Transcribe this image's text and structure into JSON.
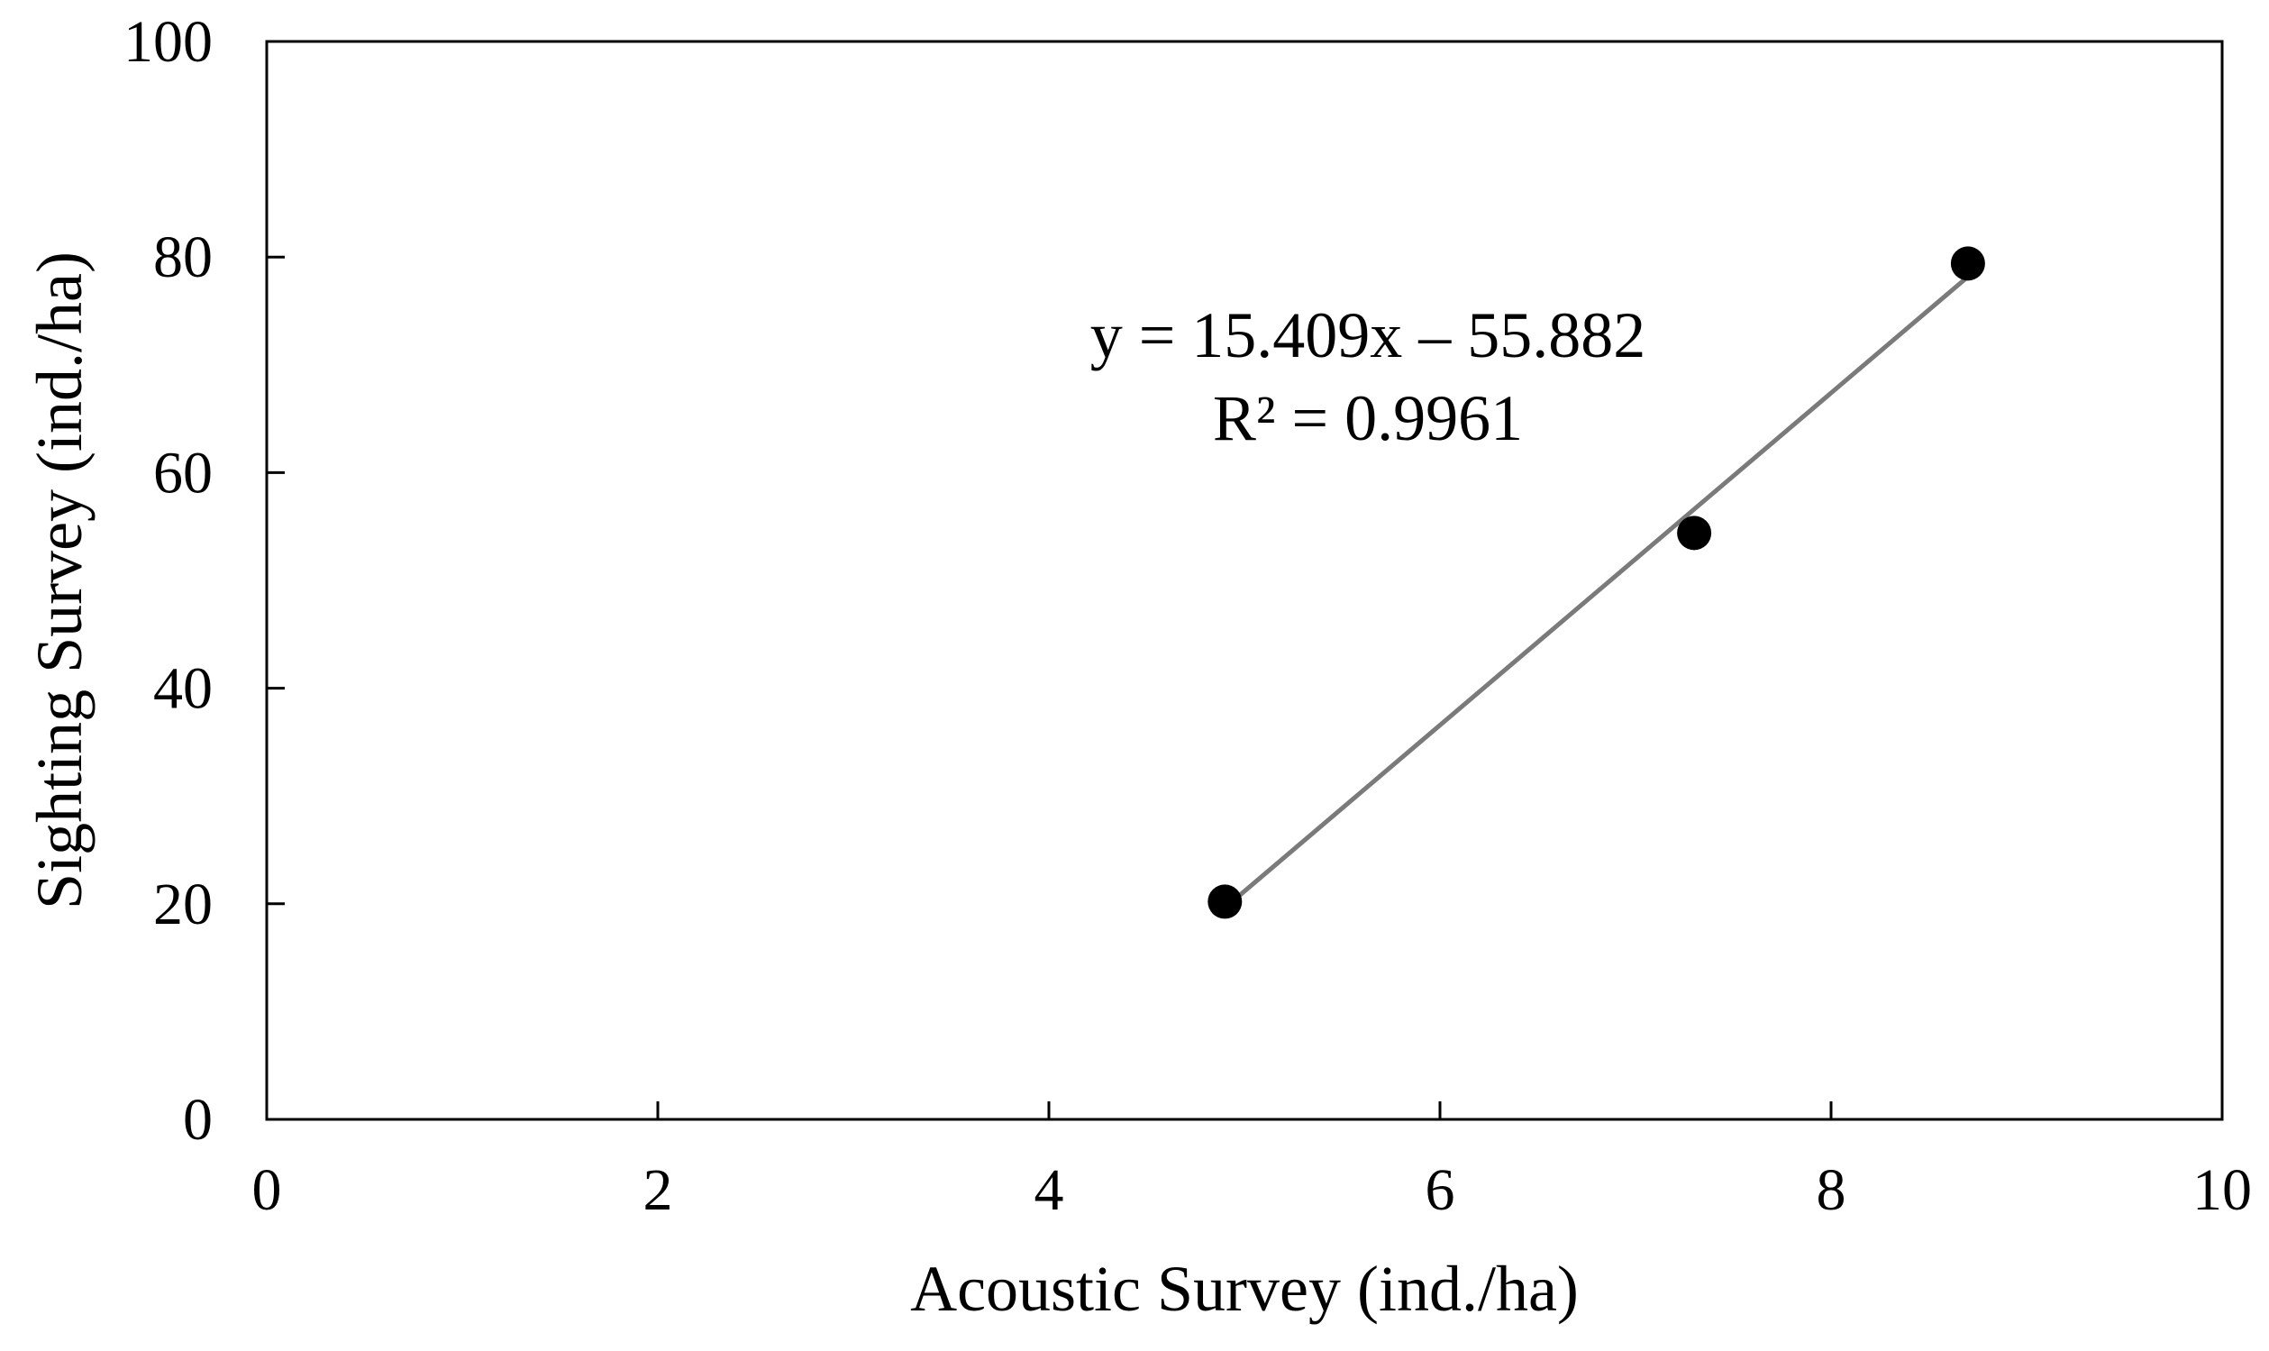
{
  "chart_data": {
    "type": "scatter",
    "title": "",
    "xlabel": "Acoustic Survey (ind./ha)",
    "ylabel": "Sighting Survey (ind./ha)",
    "xlim": [
      0,
      10
    ],
    "ylim": [
      0,
      100
    ],
    "x_ticks": [
      "0",
      "2",
      "4",
      "6",
      "8",
      "10"
    ],
    "y_ticks": [
      "0",
      "20",
      "40",
      "60",
      "80",
      "100"
    ],
    "grid": false,
    "legend": "none",
    "series": [
      {
        "points": [
          {
            "x": 4.9,
            "y": 20.2
          },
          {
            "x": 7.3,
            "y": 54.4
          },
          {
            "x": 8.7,
            "y": 79.4
          }
        ]
      }
    ],
    "trendline": {
      "type": "linear",
      "slope": 15.409,
      "intercept": -55.882,
      "x_range": [
        4.9,
        8.7
      ]
    },
    "annotations": {
      "equation": "y = 15.409x – 55.882",
      "r_squared": "R² = 0.9961"
    },
    "colors": {
      "points": "#000000",
      "trendline": "#7a7a7a",
      "axes": "#000000"
    }
  }
}
